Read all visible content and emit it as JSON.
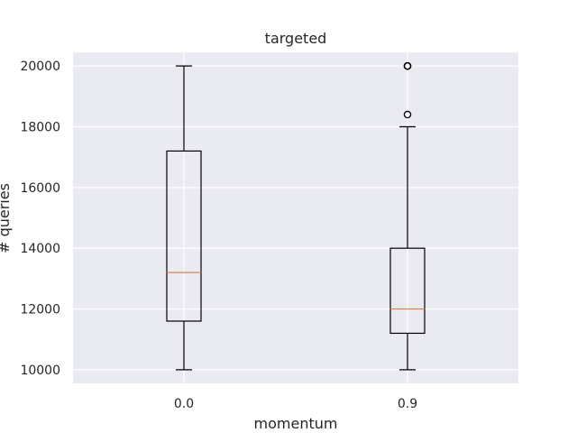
{
  "chart_data": {
    "type": "box",
    "title": "targeted",
    "xlabel": "momentum",
    "ylabel": "# queries",
    "categories": [
      "0.0",
      "0.9"
    ],
    "ylim": [
      9550,
      20450
    ],
    "yticks": [
      10000,
      12000,
      14000,
      16000,
      18000,
      20000
    ],
    "grid": true,
    "boxes": [
      {
        "category": "0.0",
        "whisker_low": 10000,
        "q1": 11600,
        "median": 13200,
        "q3": 17200,
        "whisker_high": 20000,
        "outliers": []
      },
      {
        "category": "0.9",
        "whisker_low": 10000,
        "q1": 11200,
        "median": 12000,
        "q3": 14000,
        "whisker_high": 18000,
        "outliers": [
          18400,
          20000,
          20000,
          20000
        ]
      }
    ]
  },
  "colors": {
    "background": "#eaeaf2",
    "grid": "#ffffff",
    "box": "#000000",
    "median": "#dd8452",
    "text": "#262626"
  }
}
